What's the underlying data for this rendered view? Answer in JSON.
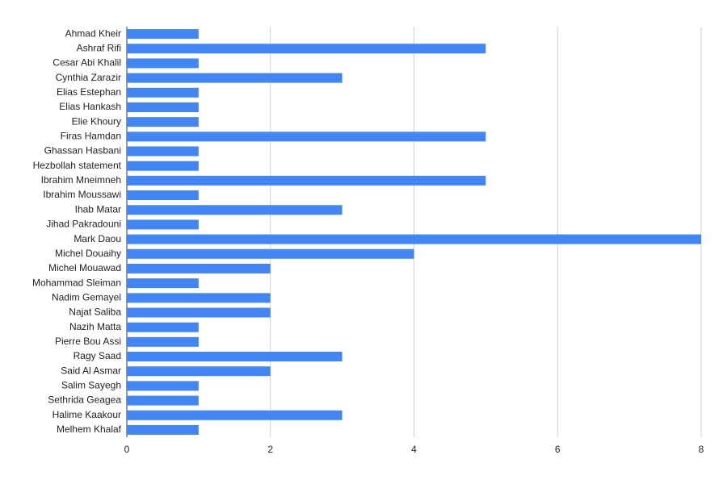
{
  "chart_data": {
    "type": "bar",
    "orientation": "horizontal",
    "categories": [
      "Ahmad Kheir",
      "Ashraf Rifi",
      "Cesar Abi Khalil",
      "Cynthia Zarazir",
      "Elias Estephan",
      "Elias Hankash",
      "Elie Khoury",
      "Firas Hamdan",
      "Ghassan Hasbani",
      "Hezbollah statement",
      "Ibrahim Mneimneh",
      "Ibrahim Moussawi",
      "Ihab Matar",
      "Jihad Pakradouni",
      "Mark Daou",
      "Michel Douaihy",
      "Michel Mouawad",
      "Mohammad Sleiman",
      "Nadim Gemayel",
      "Najat Saliba",
      "Nazih Matta",
      "Pierre Bou Assi",
      "Ragy Saad",
      "Said Al Asmar",
      "Salim Sayegh",
      "Sethrida Geagea",
      "Halime Kaakour",
      "Melhem Khalaf"
    ],
    "values": [
      1,
      5,
      1,
      3,
      1,
      1,
      1,
      5,
      1,
      1,
      5,
      1,
      3,
      1,
      8,
      4,
      2,
      1,
      2,
      2,
      1,
      1,
      3,
      2,
      1,
      1,
      3,
      1
    ],
    "color": "#4285f4",
    "xlim": [
      0,
      8
    ],
    "xticks": [
      0,
      2,
      4,
      6,
      8
    ],
    "grid": true
  }
}
